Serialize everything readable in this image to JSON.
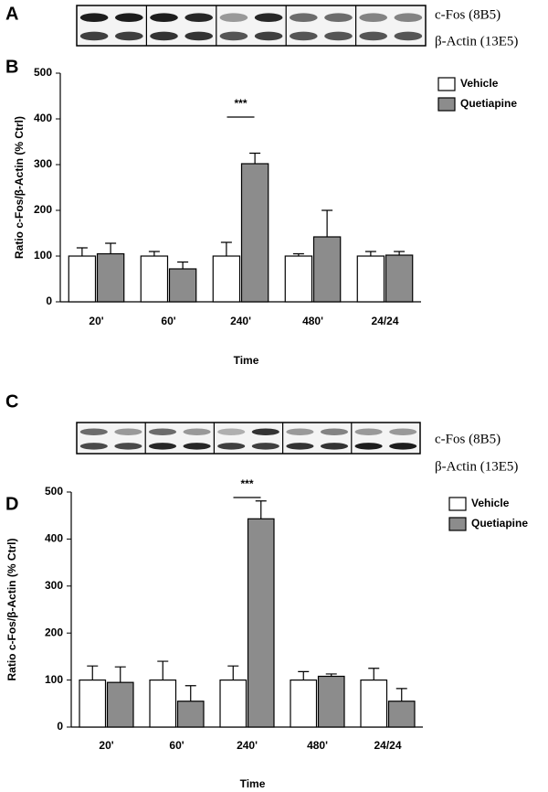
{
  "panel_labels": [
    "A",
    "B",
    "C",
    "D"
  ],
  "blots": [
    {
      "labels": [
        "c-Fos (8B5)",
        "β-Actin (13E5)"
      ]
    },
    {
      "labels": [
        "c-Fos (8B5)",
        "β-Actin (13E5)"
      ]
    }
  ],
  "chart_data": [
    {
      "type": "bar",
      "x_label": "Time",
      "y_label": "Ratio c-Fos/β-Actin (% Ctrl)",
      "categories": [
        "20'",
        "60'",
        "240'",
        "480'",
        "24/24"
      ],
      "series": [
        {
          "name": "Vehicle",
          "color": "#ffffff",
          "values": [
            100,
            100,
            100,
            100,
            100
          ],
          "errors": [
            18,
            10,
            30,
            5,
            10
          ]
        },
        {
          "name": "Quetiapine",
          "color": "#8c8c8c",
          "values": [
            105,
            72,
            302,
            142,
            102
          ],
          "errors": [
            23,
            15,
            23,
            58,
            8
          ]
        }
      ],
      "annotation": "***",
      "ylim": [
        0,
        500
      ],
      "yticks": [
        0,
        100,
        200,
        300,
        400,
        500
      ],
      "legend": "upper right"
    },
    {
      "type": "bar",
      "x_label": "Time",
      "y_label": "Ratio c-Fos/β-Actin (% Ctrl)",
      "categories": [
        "20'",
        "60'",
        "240'",
        "480'",
        "24/24"
      ],
      "series": [
        {
          "name": "Vehicle",
          "color": "#ffffff",
          "values": [
            100,
            100,
            100,
            100,
            100
          ],
          "errors": [
            30,
            40,
            30,
            18,
            25
          ]
        },
        {
          "name": "Quetiapine",
          "color": "#8c8c8c",
          "values": [
            95,
            55,
            443,
            108,
            55
          ],
          "errors": [
            33,
            33,
            38,
            5,
            27
          ]
        }
      ],
      "annotation": "***",
      "ylim": [
        0,
        500
      ],
      "yticks": [
        0,
        100,
        200,
        300,
        400,
        500
      ],
      "legend": "upper right"
    }
  ]
}
